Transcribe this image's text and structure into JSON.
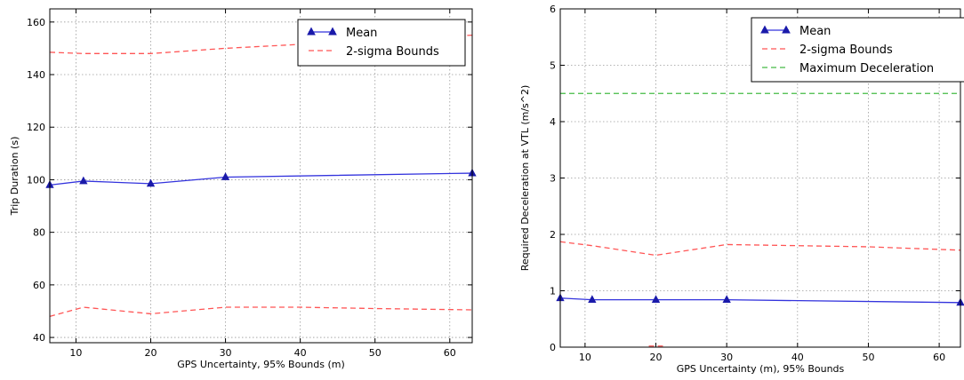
{
  "chart_data": [
    {
      "type": "line",
      "title": "",
      "xlabel": "GPS Uncertainty, 95% Bounds (m)",
      "ylabel": "Trip Duration (s)",
      "xlim": [
        6.5,
        63
      ],
      "ylim": [
        38,
        165
      ],
      "xticks": [
        10,
        20,
        30,
        40,
        50,
        60
      ],
      "yticks": [
        40,
        60,
        80,
        100,
        120,
        140,
        160
      ],
      "grid": true,
      "legend_position": "top-right",
      "series": [
        {
          "name": "Mean",
          "color": "#3333dd",
          "style": "solid",
          "marker": "triangle",
          "x": [
            6.5,
            11,
            20,
            30,
            63
          ],
          "y": [
            98,
            99.5,
            98.5,
            101,
            102.5
          ]
        },
        {
          "name": "2-sigma Bounds",
          "color": "#ff5555",
          "style": "dashed",
          "marker": "none",
          "x": [
            6.5,
            11,
            20,
            30,
            40,
            50,
            63
          ],
          "y": [
            148.5,
            148,
            148,
            150,
            151.5,
            153,
            155
          ]
        },
        {
          "name": "",
          "color": "#ff5555",
          "style": "dashed",
          "marker": "none",
          "x": [
            6.5,
            11,
            20,
            30,
            40,
            50,
            63
          ],
          "y": [
            48,
            51.5,
            49,
            51.5,
            51.5,
            51,
            50.5
          ]
        }
      ]
    },
    {
      "type": "line",
      "title": "",
      "xlabel": "GPS Uncertainty (m), 95% Bounds",
      "ylabel": "Required Deceleration at VTL (m/s^2)",
      "xlim": [
        6.5,
        63
      ],
      "ylim": [
        0,
        6
      ],
      "xticks": [
        10,
        20,
        30,
        40,
        50,
        60
      ],
      "yticks": [
        0,
        1,
        2,
        3,
        4,
        5,
        6
      ],
      "grid": true,
      "legend_position": "top-right",
      "series": [
        {
          "name": "Mean",
          "color": "#3333dd",
          "style": "solid",
          "marker": "triangle",
          "x": [
            6.5,
            11,
            20,
            30,
            63
          ],
          "y": [
            0.87,
            0.84,
            0.84,
            0.84,
            0.79
          ]
        },
        {
          "name": "2-sigma Bounds",
          "color": "#ff5555",
          "style": "dashed",
          "marker": "none",
          "x": [
            6.5,
            11,
            20,
            30,
            40,
            50,
            63
          ],
          "y": [
            1.87,
            1.8,
            1.63,
            1.82,
            1.8,
            1.78,
            1.72
          ]
        },
        {
          "name": "",
          "color": "#ff5555",
          "style": "dashed",
          "marker": "none",
          "x": [
            19,
            21
          ],
          "y": [
            0.02,
            0.02
          ]
        },
        {
          "name": "Maximum Deceleration",
          "color": "#44bb44",
          "style": "dashed",
          "marker": "none",
          "x": [
            6.5,
            63
          ],
          "y": [
            4.5,
            4.5
          ]
        }
      ]
    }
  ]
}
